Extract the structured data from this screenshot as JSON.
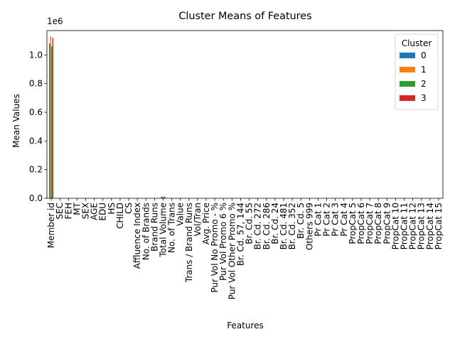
{
  "chart_data": {
    "type": "bar",
    "title": "Cluster Means of Features",
    "xlabel": "Features",
    "ylabel": "Mean Values",
    "y_scale_label": "1e6",
    "ylim": [
      0,
      1170000
    ],
    "yticks": [
      0,
      200000,
      400000,
      600000,
      800000,
      1000000
    ],
    "ytick_labels": [
      "0.0",
      "0.2",
      "0.4",
      "0.6",
      "0.8",
      "1.0"
    ],
    "grid": false,
    "legend": {
      "title": "Cluster",
      "placement": "top-right"
    },
    "categories": [
      "Member id",
      "SEC",
      "FEH",
      "MT",
      "SEX",
      "AGE",
      "EDU",
      "HS",
      "CHILD",
      "CS",
      "Affluence Index",
      "No. of Brands",
      "Brand Runs",
      "Total Volume",
      "No. of  Trans",
      "Value",
      "Trans / Brand Runs",
      "Vol/Tran",
      "Avg. Price",
      "Pur Vol No Promo - %",
      "Pur Vol Promo 6 %",
      "Pur Vol Other Promo %",
      "Br. Cd. 57, 144",
      "Br. Cd. 55",
      "Br. Cd. 272",
      "Br. Cd. 286",
      "Br. Cd. 24",
      "Br. Cd. 481",
      "Br. Cd. 352",
      "Br. Cd. 5",
      "Others 999",
      "Pr Cat 1",
      "Pr Cat 2",
      "Pr Cat 3",
      "Pr Cat 4",
      "PropCat 5",
      "PropCat 6",
      "PropCat 7",
      "PropCat 8",
      "PropCat 9",
      "PropCat 10",
      "PropCat 11",
      "PropCat 12",
      "PropCat 13",
      "PropCat 14",
      "PropCat 15"
    ],
    "series": [
      {
        "name": "0",
        "color": "#1f77b4",
        "values": [
          1080000,
          2,
          1,
          10,
          2,
          3,
          4,
          5,
          2,
          2,
          17,
          3,
          15,
          11500,
          30,
          1400,
          2,
          390,
          12,
          0.9,
          0.05,
          0.05,
          0.1,
          0.1,
          0.05,
          0.05,
          0.05,
          0.05,
          0.05,
          0.05,
          0.5,
          0.3,
          0.4,
          0.2,
          0.1,
          0.3,
          0.05,
          0.05,
          0.05,
          0.05,
          0.05,
          0.05,
          0.05,
          0.05,
          0.05,
          0.05
        ]
      },
      {
        "name": "1",
        "color": "#ff7f0e",
        "values": [
          1130000,
          2,
          1,
          10,
          2,
          3,
          4,
          5,
          2,
          2,
          17,
          3,
          15,
          14000,
          35,
          1700,
          2,
          400,
          12,
          0.9,
          0.05,
          0.05,
          0.1,
          0.1,
          0.05,
          0.05,
          0.05,
          0.05,
          0.05,
          0.05,
          0.5,
          0.3,
          0.4,
          0.2,
          0.1,
          0.3,
          0.05,
          0.05,
          0.05,
          0.05,
          0.05,
          0.05,
          0.05,
          0.05,
          0.05,
          0.05
        ]
      },
      {
        "name": "2",
        "color": "#2ca02c",
        "values": [
          1060000,
          2,
          1,
          10,
          2,
          3,
          4,
          5,
          2,
          2,
          17,
          3,
          15,
          8000,
          25,
          1000,
          2,
          300,
          12,
          0.9,
          0.05,
          0.05,
          0.1,
          0.1,
          0.05,
          0.05,
          0.05,
          0.05,
          0.05,
          0.05,
          0.5,
          0.3,
          0.4,
          0.2,
          0.1,
          0.3,
          0.05,
          0.05,
          0.05,
          0.05,
          0.05,
          0.05,
          0.05,
          0.05,
          0.05,
          0.05
        ]
      },
      {
        "name": "3",
        "color": "#d62728",
        "values": [
          1120000,
          2,
          1,
          10,
          2,
          3,
          4,
          5,
          2,
          2,
          17,
          3,
          15,
          12000,
          32,
          1500,
          2,
          370,
          12,
          0.9,
          0.05,
          0.05,
          0.1,
          0.1,
          0.05,
          0.05,
          0.05,
          0.05,
          0.05,
          0.05,
          0.5,
          0.3,
          0.4,
          0.2,
          0.1,
          0.3,
          0.05,
          0.05,
          0.05,
          0.05,
          0.05,
          0.05,
          0.05,
          0.05,
          0.05,
          0.05
        ]
      }
    ]
  }
}
